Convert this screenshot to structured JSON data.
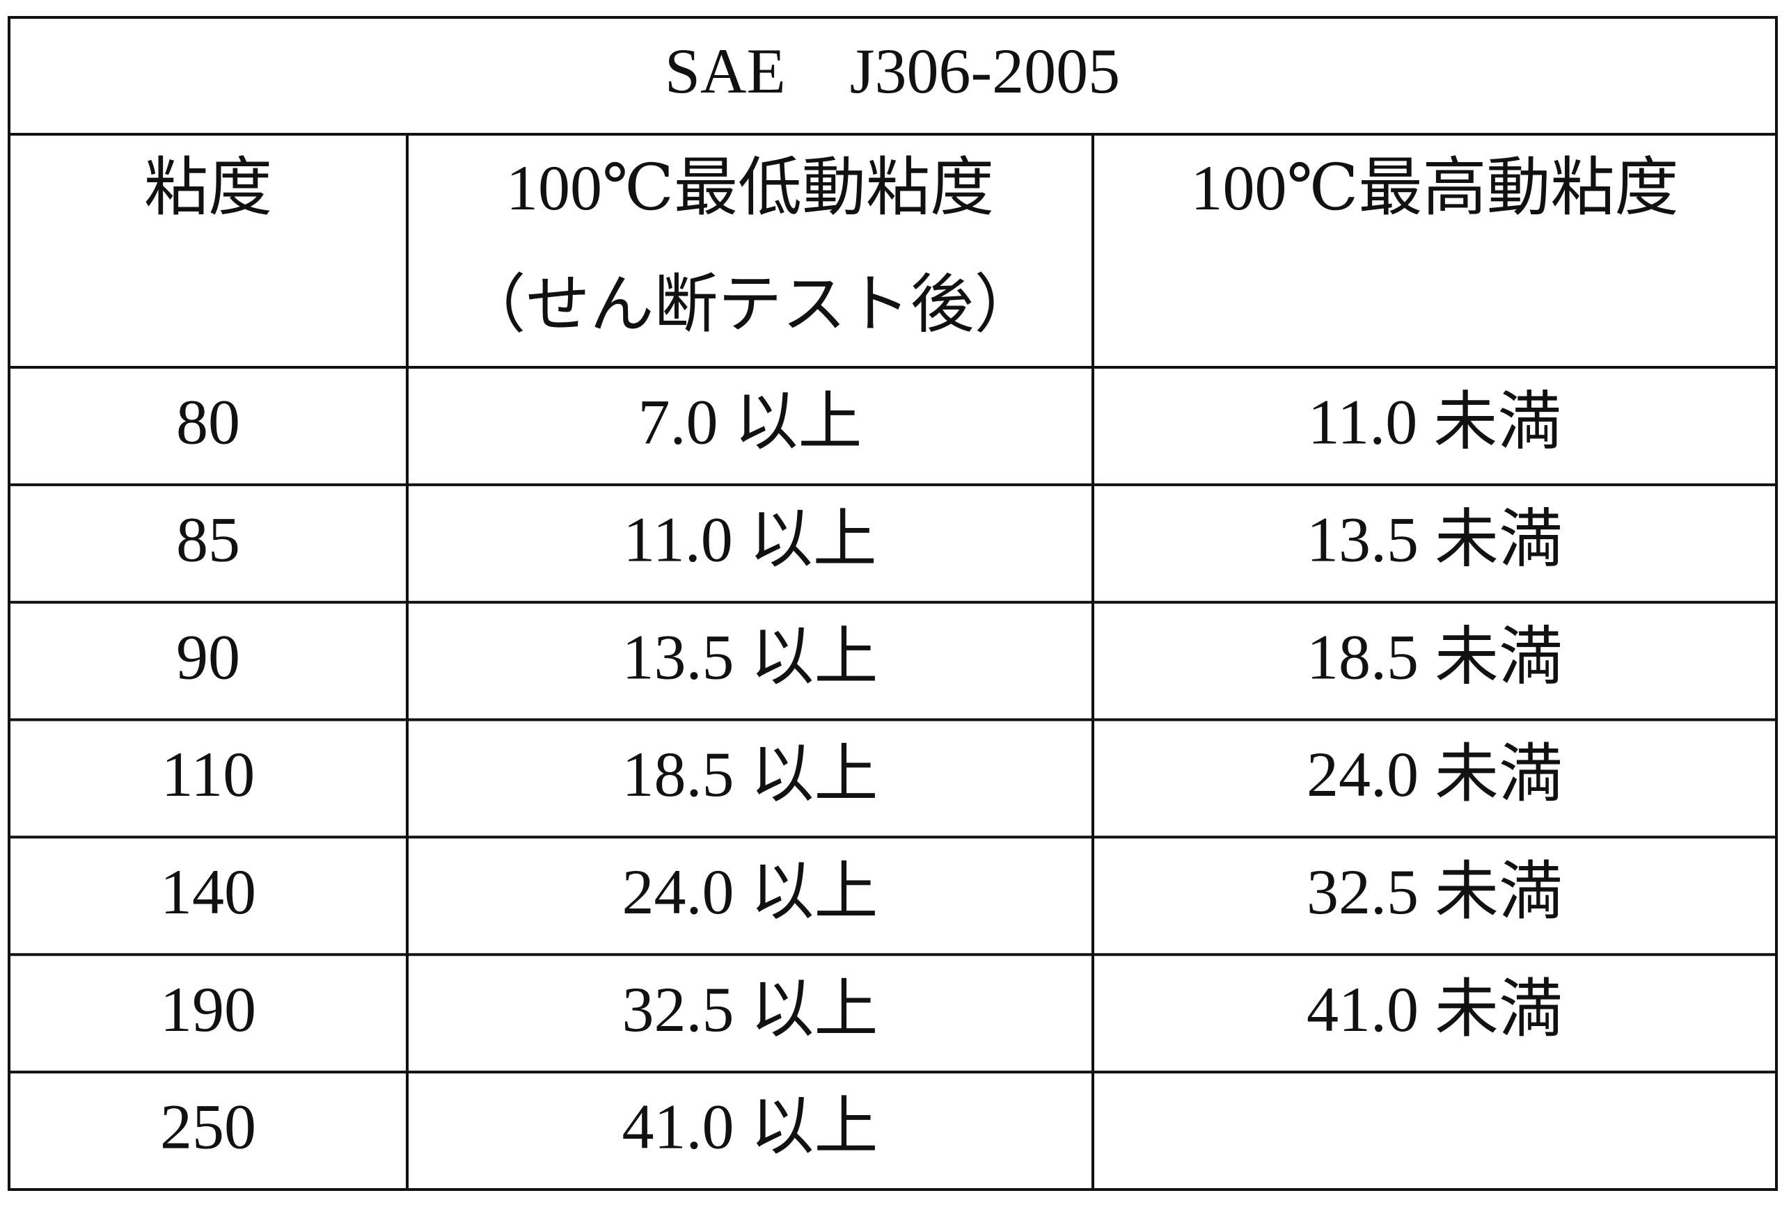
{
  "title": "SAE　J306-2005",
  "table": {
    "header": [
      [
        "粘度"
      ],
      [
        "100℃最低動粘度",
        "（せん断テスト後）"
      ],
      [
        "100℃最高動粘度"
      ]
    ],
    "rows": [
      [
        "80",
        "7.0 以上",
        "11.0 未満"
      ],
      [
        "85",
        "11.0 以上",
        "13.5 未満"
      ],
      [
        "90",
        "13.5 以上",
        "18.5 未満"
      ],
      [
        "110",
        "18.5 以上",
        "24.0 未満"
      ],
      [
        "140",
        "24.0 以上",
        "32.5 未満"
      ],
      [
        "190",
        "32.5 以上",
        "41.0 未満"
      ],
      [
        "250",
        "41.0 以上"
      ]
    ]
  }
}
